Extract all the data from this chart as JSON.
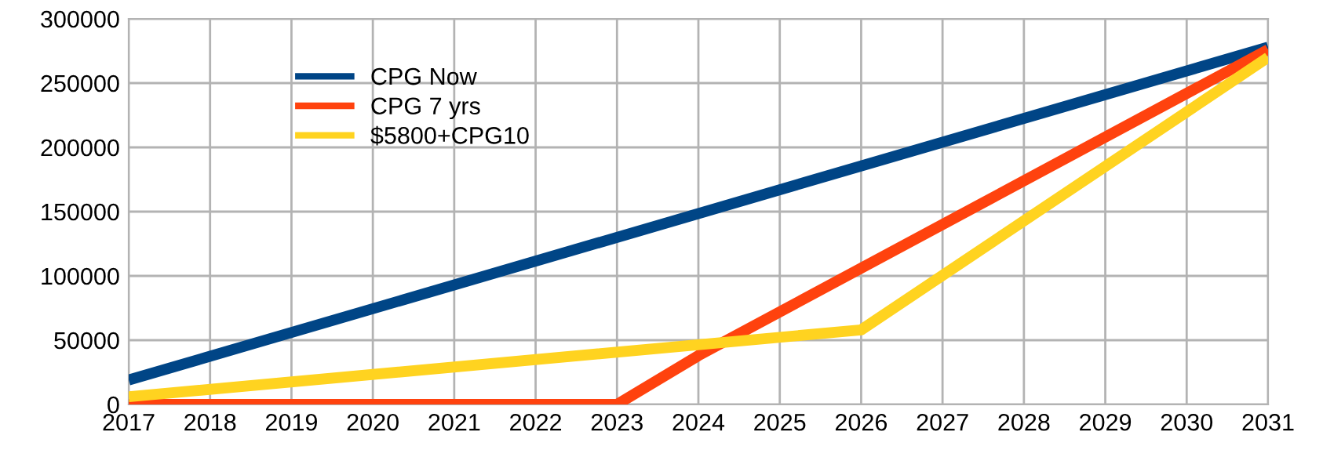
{
  "chart_data": {
    "type": "line",
    "series": [
      {
        "name": "CPG Now",
        "color": "#004586",
        "x": [
          2017,
          2031
        ],
        "values": [
          19000,
          278000
        ]
      },
      {
        "name": "CPG 7 yrs",
        "color": "#ff420e",
        "x": [
          2017,
          2023,
          2024,
          2026,
          2031
        ],
        "values": [
          0,
          0,
          38000,
          106000,
          276000
        ]
      },
      {
        "name": "$5800+CPG10",
        "color": "#ffd320",
        "x": [
          2017,
          2026,
          2031
        ],
        "values": [
          6000,
          58000,
          270000
        ]
      }
    ],
    "xlim": [
      2017,
      2031
    ],
    "xticks": [
      2017,
      2018,
      2019,
      2020,
      2021,
      2022,
      2023,
      2024,
      2025,
      2026,
      2027,
      2028,
      2029,
      2030,
      2031
    ],
    "ylim": [
      0,
      300000
    ],
    "yticks": [
      0,
      50000,
      100000,
      150000,
      200000,
      250000,
      300000
    ],
    "grid": true,
    "legend": "top left",
    "marker": "none",
    "line_style": "solid"
  }
}
